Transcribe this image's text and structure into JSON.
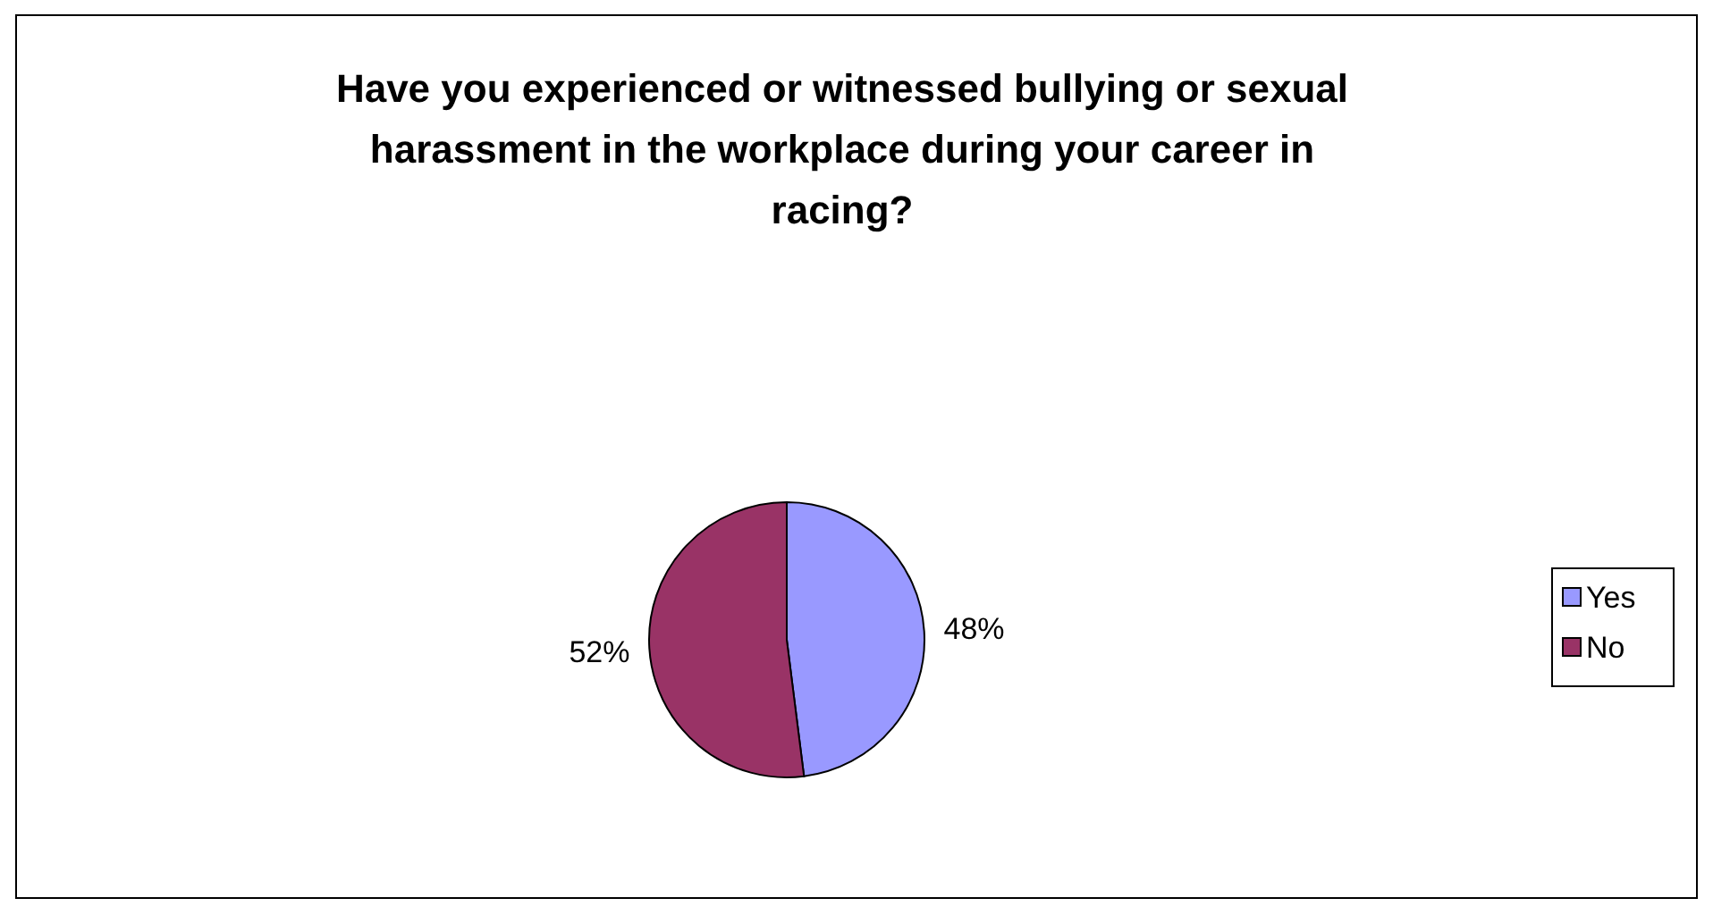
{
  "chart_data": {
    "type": "pie",
    "title": "Have you experienced or witnessed bullying or sexual harassment in the workplace during your career in racing?",
    "categories": [
      "Yes",
      "No"
    ],
    "values": [
      48,
      52
    ],
    "colors": [
      "#9999ff",
      "#993366"
    ],
    "value_labels": [
      "48%",
      "52%"
    ],
    "legend": "right"
  }
}
